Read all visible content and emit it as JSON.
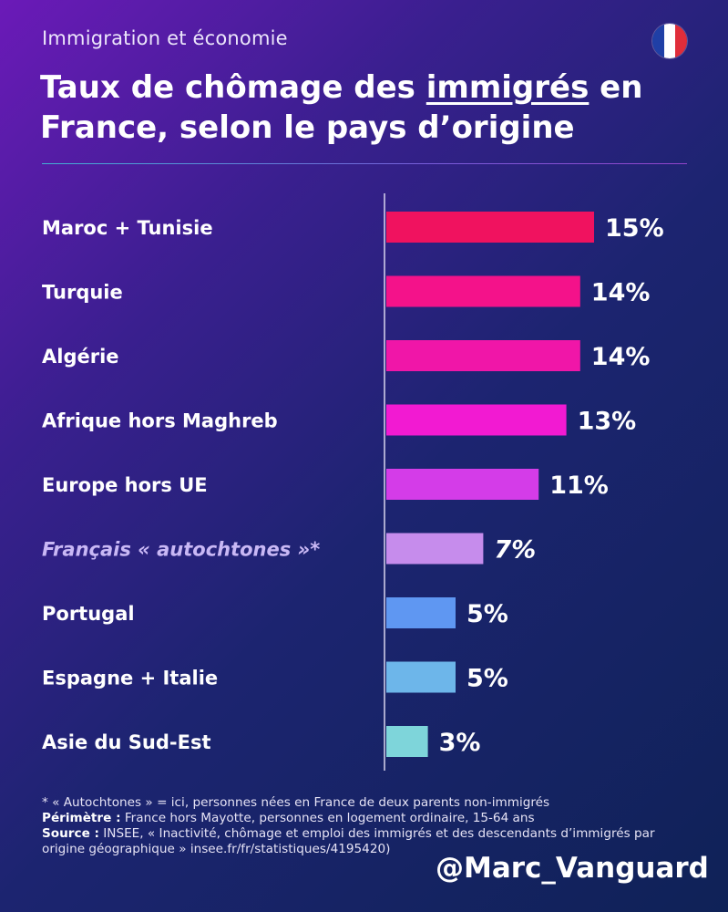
{
  "header": {
    "kicker": "Immigration et économie",
    "title_part1": "Taux de chômage des ",
    "title_underlined": "immigrés",
    "title_part2": " en France, selon le pays d’origine",
    "flag_icon": "france-flag-icon",
    "flag_colors": [
      "#1f3fa6",
      "#ffffff",
      "#e02d3a"
    ]
  },
  "chart_data": {
    "type": "bar",
    "orientation": "horizontal",
    "categories": [
      "Maroc + Tunisie",
      "Turquie",
      "Algérie",
      "Afrique hors Maghreb",
      "Europe hors UE",
      "Français « autochtones »*",
      "Portugal",
      "Espagne + Italie",
      "Asie du Sud-Est"
    ],
    "values": [
      15,
      14,
      14,
      13,
      11,
      7,
      5,
      5,
      3
    ],
    "value_labels": [
      "15%",
      "14%",
      "14%",
      "13%",
      "11%",
      "7%",
      "5%",
      "5%",
      "3%"
    ],
    "highlighted_category": "Français « autochtones »*",
    "bar_colors": [
      "#f0125f",
      "#f4128a",
      "#f016a8",
      "#f21ad2",
      "#d43ce8",
      "#c68cec",
      "#5f97f2",
      "#6db6ea",
      "#7ed5da"
    ],
    "xlim": [
      0,
      15
    ],
    "title": "",
    "xlabel": "",
    "ylabel": "",
    "grid": false
  },
  "footer": {
    "note": "* « Autochtones » = ici, personnes nées en France de deux parents non-immigrés",
    "perimetre_label": "Périmètre :",
    "perimetre_text": " France hors Mayotte, personnes en logement ordinaire, 15-64 ans",
    "source_label": "Source :",
    "source_text": " INSEE, « Inactivité, chômage et emploi des immigrés et des descendants d’immigrés par origine géographique » insee.fr/fr/statistiques/4195420)",
    "handle": "@Marc_Vanguard"
  }
}
